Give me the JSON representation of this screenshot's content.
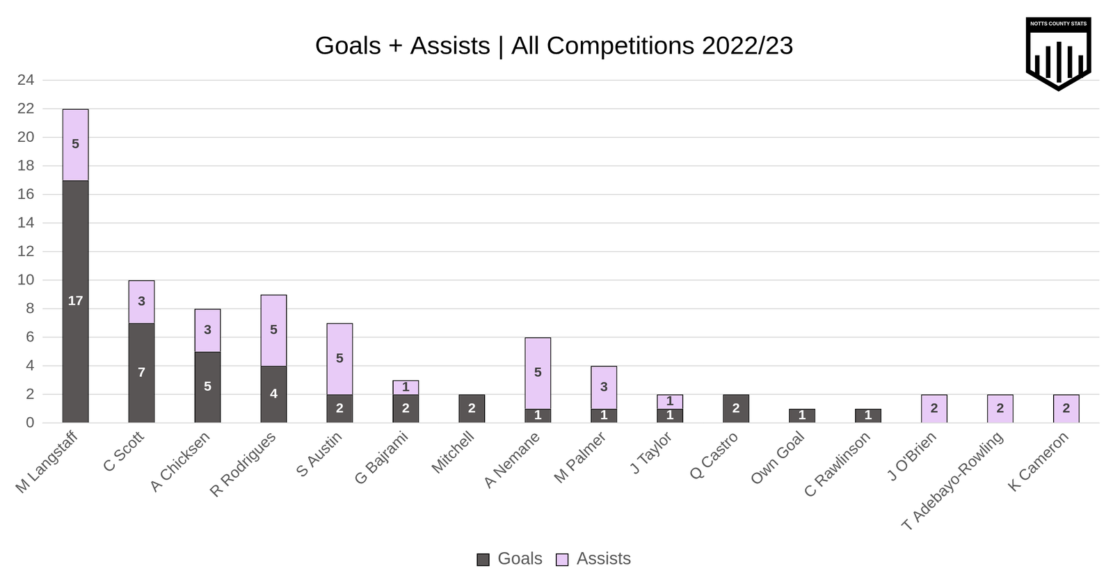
{
  "chart_data": {
    "type": "bar",
    "title": "Goals + Assists | All Competitions 2022/23",
    "categories": [
      "M Langstaff",
      "C Scott",
      "A Chicksen",
      "R Rodrigues",
      "S Austin",
      "G Bajrami",
      "Mitchell",
      "A Nemane",
      "M Palmer",
      "J Taylor",
      "Q Castro",
      "Own Goal",
      "C Rawlinson",
      "J O'Brien",
      "T Adebayo-Rowling",
      "K Cameron"
    ],
    "series": [
      {
        "name": "Goals",
        "color": "#595555",
        "values": [
          17,
          7,
          5,
          4,
          2,
          2,
          2,
          1,
          1,
          1,
          2,
          1,
          1,
          null,
          null,
          null
        ]
      },
      {
        "name": "Assists",
        "color": "#e8cbf7",
        "values": [
          5,
          3,
          3,
          5,
          5,
          1,
          null,
          5,
          3,
          1,
          null,
          null,
          null,
          2,
          2,
          2
        ]
      }
    ],
    "ylim": [
      0,
      24
    ],
    "yticks": [
      0,
      2,
      4,
      6,
      8,
      10,
      12,
      14,
      16,
      18,
      20,
      22,
      24
    ],
    "grid": true,
    "stacked": true,
    "data_labels": true,
    "legend": "bottom",
    "annotations": [
      "NOTTS COUNTY STATS"
    ]
  }
}
